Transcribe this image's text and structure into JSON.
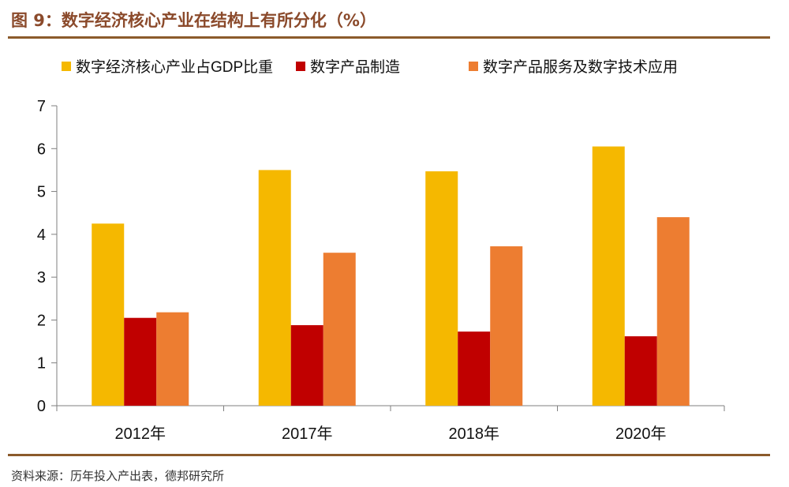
{
  "figure": {
    "title": "图 9：数字经济核心产业在结构上有所分化（%）",
    "source": "资料来源：历年投入产出表，德邦研究所"
  },
  "chart_data": {
    "type": "bar",
    "categories": [
      "2012年",
      "2017年",
      "2018年",
      "2020年"
    ],
    "series": [
      {
        "name": "数字经济核心产业占GDP比重",
        "color": "#F5B800",
        "values": [
          4.25,
          5.5,
          5.47,
          6.05
        ]
      },
      {
        "name": "数字产品制造",
        "color": "#C00000",
        "values": [
          2.05,
          1.88,
          1.73,
          1.62
        ]
      },
      {
        "name": "数字产品服务及数字技术应用",
        "color": "#ED7D31",
        "values": [
          2.18,
          3.57,
          3.72,
          4.4
        ]
      }
    ],
    "yticks": [
      0,
      1,
      2,
      3,
      4,
      5,
      6,
      7
    ],
    "ylim": [
      0,
      7
    ],
    "grid": false,
    "legend_position": "top"
  }
}
